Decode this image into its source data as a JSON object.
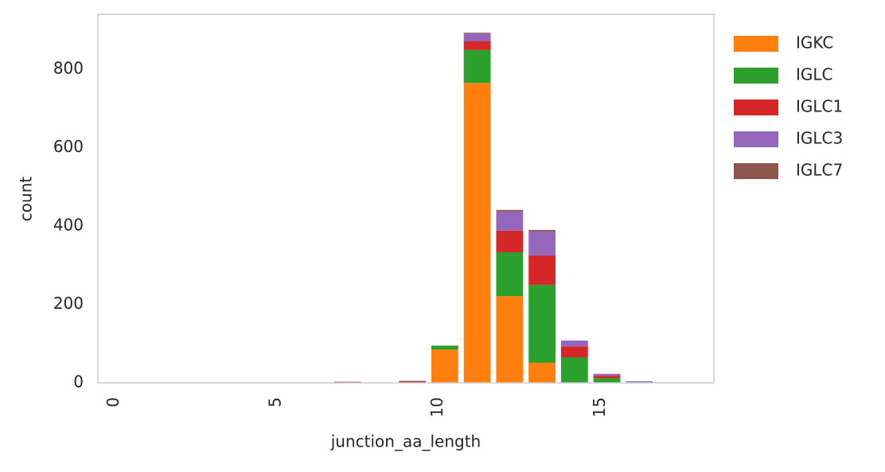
{
  "chart_data": {
    "type": "stacked_bar",
    "xlabel": "junction_aa_length",
    "ylabel": "count",
    "x": [
      7.2,
      9.2,
      10.2,
      11.2,
      12.2,
      13.2,
      14.2,
      15.2,
      16.2
    ],
    "series": [
      {
        "name": "IGKC",
        "color": "#ff7f0e",
        "values": [
          0,
          0,
          85,
          765,
          221,
          51,
          0,
          0,
          0
        ]
      },
      {
        "name": "IGLC",
        "color": "#2ca02c",
        "values": [
          0,
          0,
          10,
          84,
          112,
          199,
          65,
          12,
          0
        ]
      },
      {
        "name": "IGLC1",
        "color": "#d62728",
        "values": [
          2,
          3,
          0,
          22,
          55,
          75,
          28,
          6,
          1
        ]
      },
      {
        "name": "IGLC3",
        "color": "#9467bd",
        "values": [
          1,
          0,
          0,
          20,
          49,
          61,
          15,
          5,
          3
        ]
      },
      {
        "name": "IGLC7",
        "color": "#8c564b",
        "values": [
          0,
          2,
          0,
          2,
          4,
          4,
          0,
          0,
          0
        ]
      }
    ],
    "xlim": [
      -0.5,
      18.5
    ],
    "xticks": [
      0,
      5,
      10,
      15
    ],
    "ylim": [
      0,
      940
    ],
    "yticks": [
      0,
      200,
      400,
      600,
      800
    ],
    "grid": false,
    "legend": "outside right"
  }
}
